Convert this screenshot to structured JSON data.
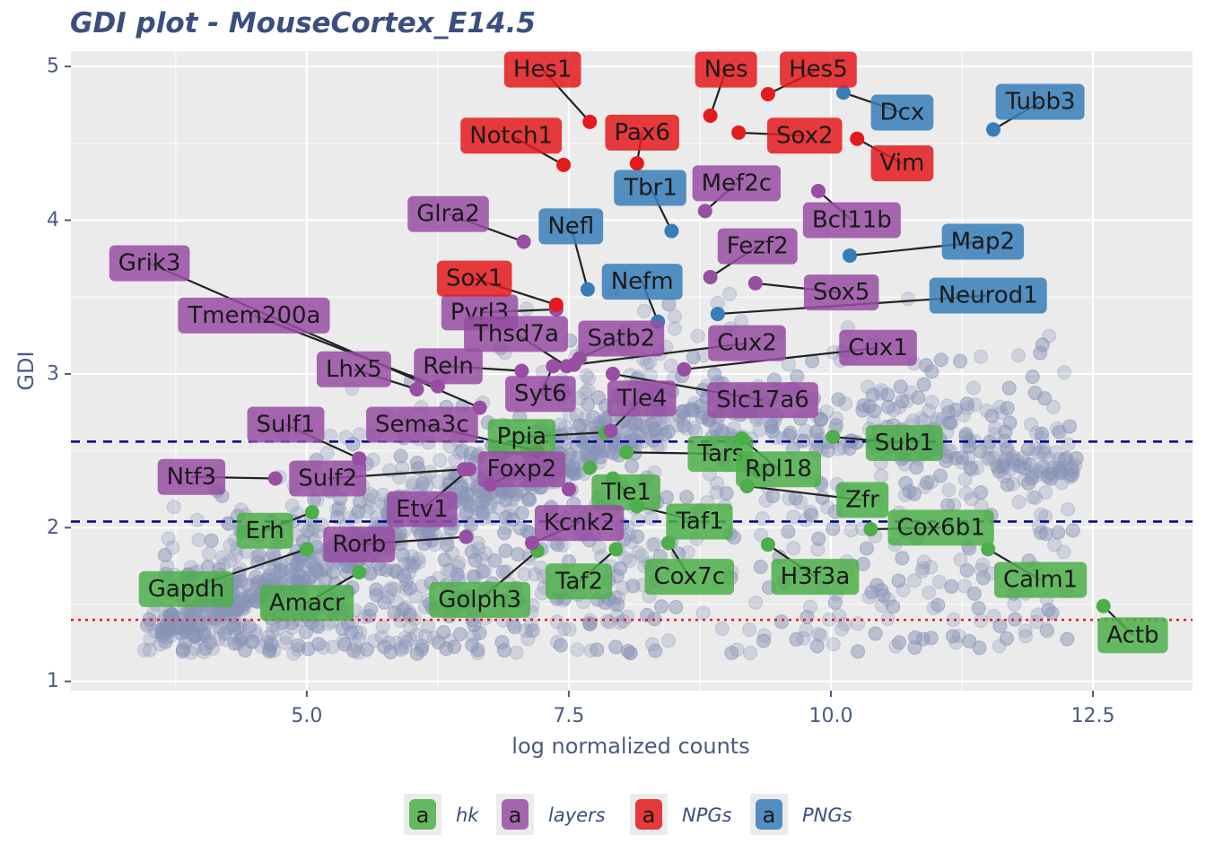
{
  "chart_data": {
    "type": "scatter",
    "title": "GDI plot - MouseCortex_E14.5",
    "xlabel": "log normalized counts",
    "ylabel": "GDI",
    "xlim": [
      2.75,
      13.45
    ],
    "ylim": [
      0.94,
      5.1
    ],
    "x_ticks": [
      5.0,
      7.5,
      10.0,
      12.5
    ],
    "x_tick_labels": [
      "5.0",
      "7.5",
      "10.0",
      "12.5"
    ],
    "y_ticks": [
      1,
      2,
      3,
      4,
      5
    ],
    "y_tick_labels": [
      "1",
      "2",
      "3",
      "4",
      "5"
    ],
    "grid": true,
    "legend_position": "bottom",
    "reference_lines": [
      {
        "y": 2.56,
        "style": "dashed",
        "color": "#00008b"
      },
      {
        "y": 2.04,
        "style": "dashed",
        "color": "#00008b"
      },
      {
        "y": 1.4,
        "style": "dotted",
        "color": "#e41a1c"
      }
    ],
    "background_points_color": "#8a94b8",
    "groups": [
      {
        "key": "hk",
        "name": "hk",
        "color": "#4daf4a"
      },
      {
        "key": "layers",
        "name": "layers",
        "color": "#984ea3"
      },
      {
        "key": "NPGs",
        "name": "NPGs",
        "color": "#e41a1c"
      },
      {
        "key": "PNGs",
        "name": "PNGs",
        "color": "#377eb8"
      }
    ],
    "series": [
      {
        "name": "hk",
        "points": [
          {
            "gene": "Ppia",
            "x": 7.85,
            "y": 2.62,
            "lx": 7.05,
            "ly": 2.59
          },
          {
            "gene": "Tars",
            "x": 8.05,
            "y": 2.49,
            "lx": 8.95,
            "ly": 2.48
          },
          {
            "gene": "Rpl18",
            "x": 9.15,
            "y": 2.58,
            "lx": 9.5,
            "ly": 2.38
          },
          {
            "gene": "Sub1",
            "x": 10.02,
            "y": 2.59,
            "lx": 10.7,
            "ly": 2.55
          },
          {
            "gene": "Zfr",
            "x": 9.2,
            "y": 2.27,
            "lx": 10.3,
            "ly": 2.18
          },
          {
            "gene": "Cox6b1",
            "x": 10.38,
            "y": 1.99,
            "lx": 11.05,
            "ly": 2.0
          },
          {
            "gene": "Tle1",
            "x": 7.92,
            "y": 2.32,
            "lx": 8.05,
            "ly": 2.23
          },
          {
            "gene": "Taf1",
            "x": 8.15,
            "y": 2.14,
            "lx": 8.75,
            "ly": 2.04
          },
          {
            "gene": "Erh",
            "x": 5.05,
            "y": 2.1,
            "lx": 4.6,
            "ly": 1.98
          },
          {
            "gene": "Gapdh",
            "x": 5.0,
            "y": 1.86,
            "lx": 3.85,
            "ly": 1.6
          },
          {
            "gene": "Amacr",
            "x": 5.5,
            "y": 1.71,
            "lx": 5.0,
            "ly": 1.51
          },
          {
            "gene": "Golph3",
            "x": 7.2,
            "y": 1.85,
            "lx": 6.65,
            "ly": 1.53
          },
          {
            "gene": "Taf2",
            "x": 7.95,
            "y": 1.86,
            "lx": 7.6,
            "ly": 1.65
          },
          {
            "gene": "Cox7c",
            "x": 8.45,
            "y": 1.9,
            "lx": 8.65,
            "ly": 1.68
          },
          {
            "gene": "H3f3a",
            "x": 9.4,
            "y": 1.89,
            "lx": 9.85,
            "ly": 1.68
          },
          {
            "gene": "Calm1",
            "x": 11.5,
            "y": 1.86,
            "lx": 12.0,
            "ly": 1.66
          },
          {
            "gene": "Actb",
            "x": 12.6,
            "y": 1.49,
            "lx": 12.88,
            "ly": 1.3
          },
          {
            "gene": "",
            "x": 7.7,
            "y": 2.39
          },
          {
            "gene": "",
            "x": 9.3,
            "y": 2.37
          }
        ]
      },
      {
        "name": "layers",
        "points": [
          {
            "gene": "Glra2",
            "x": 7.07,
            "y": 3.86,
            "lx": 6.35,
            "ly": 4.04
          },
          {
            "gene": "Mef2c",
            "x": 8.8,
            "y": 4.06,
            "lx": 9.1,
            "ly": 4.24
          },
          {
            "gene": "Bcl11b",
            "x": 9.88,
            "y": 4.19,
            "lx": 10.2,
            "ly": 4.0
          },
          {
            "gene": "Fezf2",
            "x": 8.85,
            "y": 3.63,
            "lx": 9.3,
            "ly": 3.83
          },
          {
            "gene": "Sox5",
            "x": 9.28,
            "y": 3.59,
            "lx": 10.1,
            "ly": 3.53
          },
          {
            "gene": "Grik3",
            "x": 6.65,
            "y": 2.78,
            "lx": 3.5,
            "ly": 3.72
          },
          {
            "gene": "Tmem200a",
            "x": 6.25,
            "y": 2.92,
            "lx": 4.5,
            "ly": 3.38
          },
          {
            "gene": "Pvrl3",
            "x": 7.38,
            "y": 3.42,
            "lx": 6.65,
            "ly": 3.4
          },
          {
            "gene": "Thsd7a",
            "x": 7.48,
            "y": 3.05,
            "lx": 7.0,
            "ly": 3.26
          },
          {
            "gene": "Satb2",
            "x": 7.6,
            "y": 3.1,
            "lx": 8.0,
            "ly": 3.23
          },
          {
            "gene": "Cux2",
            "x": 7.55,
            "y": 3.06,
            "lx": 9.2,
            "ly": 3.2
          },
          {
            "gene": "Cux1",
            "x": 8.6,
            "y": 3.03,
            "lx": 10.45,
            "ly": 3.17
          },
          {
            "gene": "Lhx5",
            "x": 6.05,
            "y": 2.9,
            "lx": 5.45,
            "ly": 3.03
          },
          {
            "gene": "Reln",
            "x": 7.05,
            "y": 3.02,
            "lx": 6.35,
            "ly": 3.05
          },
          {
            "gene": "Syt6",
            "x": 7.35,
            "y": 3.05,
            "lx": 7.23,
            "ly": 2.87
          },
          {
            "gene": "Tle4",
            "x": 7.9,
            "y": 2.63,
            "lx": 8.2,
            "ly": 2.84
          },
          {
            "gene": "Slc17a6",
            "x": 7.92,
            "y": 3.0,
            "lx": 9.35,
            "ly": 2.83
          },
          {
            "gene": "Sulf1",
            "x": 5.5,
            "y": 2.45,
            "lx": 4.8,
            "ly": 2.67
          },
          {
            "gene": "Sema3c",
            "x": 7.2,
            "y": 2.5,
            "lx": 6.1,
            "ly": 2.67
          },
          {
            "gene": "Ntf3",
            "x": 4.7,
            "y": 2.32,
            "lx": 3.9,
            "ly": 2.33
          },
          {
            "gene": "Sulf2",
            "x": 6.5,
            "y": 2.38,
            "lx": 5.2,
            "ly": 2.32
          },
          {
            "gene": "Foxp2",
            "x": 6.75,
            "y": 2.28,
            "lx": 7.05,
            "ly": 2.38
          },
          {
            "gene": "Etv1",
            "x": 6.55,
            "y": 2.38,
            "lx": 6.1,
            "ly": 2.12
          },
          {
            "gene": "Kcnk2",
            "x": 7.15,
            "y": 1.9,
            "lx": 7.6,
            "ly": 2.03
          },
          {
            "gene": "Rorb",
            "x": 6.52,
            "y": 1.94,
            "lx": 5.5,
            "ly": 1.89
          },
          {
            "gene": "",
            "x": 7.5,
            "y": 2.25
          }
        ]
      },
      {
        "name": "NPGs",
        "points": [
          {
            "gene": "Hes1",
            "x": 7.7,
            "y": 4.64,
            "lx": 7.25,
            "ly": 4.98
          },
          {
            "gene": "Nes",
            "x": 8.85,
            "y": 4.68,
            "lx": 9.0,
            "ly": 4.98
          },
          {
            "gene": "Hes5",
            "x": 9.4,
            "y": 4.82,
            "lx": 9.88,
            "ly": 4.98
          },
          {
            "gene": "Notch1",
            "x": 7.45,
            "y": 4.36,
            "lx": 6.95,
            "ly": 4.55
          },
          {
            "gene": "Pax6",
            "x": 8.15,
            "y": 4.37,
            "lx": 8.2,
            "ly": 4.57
          },
          {
            "gene": "Sox2",
            "x": 9.12,
            "y": 4.57,
            "lx": 9.75,
            "ly": 4.55
          },
          {
            "gene": "Vim",
            "x": 10.25,
            "y": 4.53,
            "lx": 10.68,
            "ly": 4.37
          },
          {
            "gene": "Sox1",
            "x": 7.38,
            "y": 3.45,
            "lx": 6.6,
            "ly": 3.62
          }
        ]
      },
      {
        "name": "PNGs",
        "points": [
          {
            "gene": "Dcx",
            "x": 10.12,
            "y": 4.83,
            "lx": 10.68,
            "ly": 4.7
          },
          {
            "gene": "Tubb3",
            "x": 11.55,
            "y": 4.59,
            "lx": 12.0,
            "ly": 4.77
          },
          {
            "gene": "Tbr1",
            "x": 8.48,
            "y": 3.93,
            "lx": 8.28,
            "ly": 4.21
          },
          {
            "gene": "Nefl",
            "x": 7.68,
            "y": 3.55,
            "lx": 7.52,
            "ly": 3.96
          },
          {
            "gene": "Nefm",
            "x": 8.35,
            "y": 3.34,
            "lx": 8.2,
            "ly": 3.6
          },
          {
            "gene": "Map2",
            "x": 10.18,
            "y": 3.77,
            "lx": 11.45,
            "ly": 3.86
          },
          {
            "gene": "Neurod1",
            "x": 8.92,
            "y": 3.39,
            "lx": 11.5,
            "ly": 3.51
          }
        ]
      }
    ]
  }
}
